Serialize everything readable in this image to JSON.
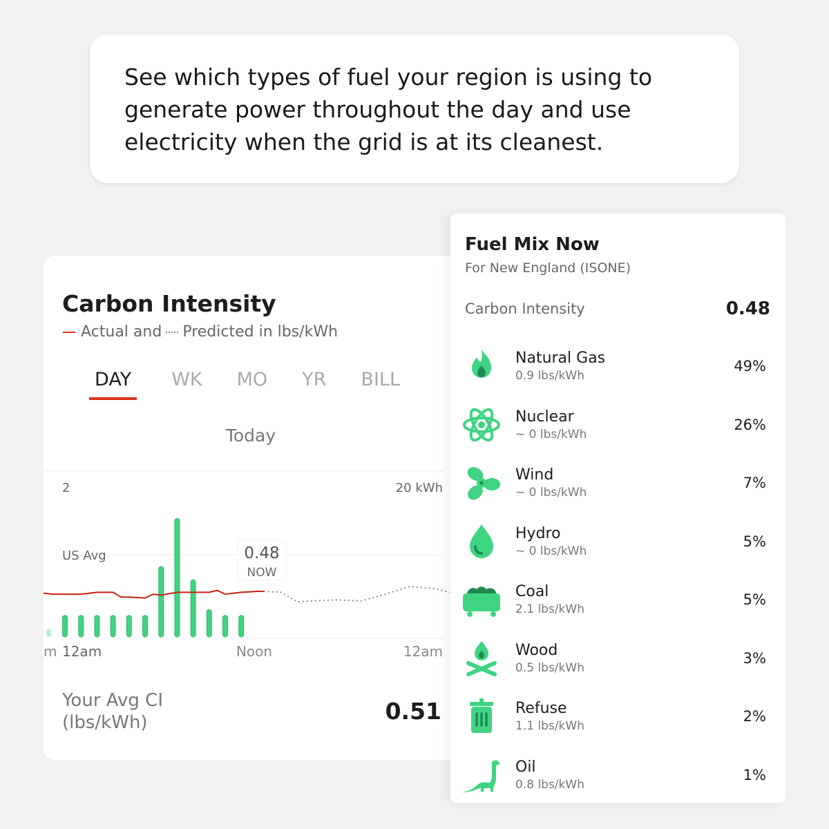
{
  "intro": "See which types of fuel your region is using to generate power throughout the day and use electricity when the grid is at its cleanest.",
  "carbon_card": {
    "title": "Carbon Intensity",
    "legend_actual": "Actual and",
    "legend_predicted": "Predicted in lbs/kWh",
    "tabs": [
      "DAY",
      "WK",
      "MO",
      "YR",
      "BILL"
    ],
    "active_tab": "DAY",
    "period": "Today",
    "avg_label_1": "Your Avg CI",
    "avg_label_2": "(lbs/kWh)",
    "avg_value": "0.51"
  },
  "chart_data": {
    "type": "bar+line",
    "left_axis_top_label": "2",
    "right_axis_top_label": "20 kWh",
    "us_avg_label": "US Avg",
    "us_avg_value": 0.87,
    "x_tick_labels": [
      "12am",
      "Noon",
      "12am"
    ],
    "x_edge_label": "m",
    "now_value": "0.48",
    "now_label": "NOW",
    "colors": {
      "bars": "#3fd482",
      "actual": "#c8200e",
      "predicted": "#888888"
    },
    "usage_kwh": {
      "hours": [
        0,
        1,
        2,
        3,
        4,
        5,
        6,
        7,
        8,
        9,
        10,
        11
      ],
      "values": [
        2.6,
        2.6,
        2.6,
        2.6,
        2.6,
        2.6,
        8.5,
        14.3,
        6.9,
        3.3,
        2.6,
        2.6
      ]
    },
    "actual_ci": {
      "hours": [
        0,
        1,
        2,
        3,
        3.5,
        4,
        5,
        5.5,
        6,
        7,
        8,
        9,
        9.5,
        10,
        11,
        12,
        12.4
      ],
      "values": [
        0.45,
        0.45,
        0.47,
        0.47,
        0.42,
        0.42,
        0.41,
        0.45,
        0.44,
        0.47,
        0.47,
        0.47,
        0.49,
        0.45,
        0.47,
        0.48,
        0.48
      ]
    },
    "predicted_ci": {
      "hours": [
        12.4,
        13.5,
        14.5,
        15.5,
        17,
        18.5,
        20,
        21.5,
        23,
        24
      ],
      "values": [
        0.48,
        0.47,
        0.37,
        0.38,
        0.39,
        0.38,
        0.45,
        0.53,
        0.51,
        0.47
      ]
    }
  },
  "fuel_mix": {
    "title": "Fuel Mix Now",
    "subtitle": "For New England (ISONE)",
    "ci_label": "Carbon Intensity",
    "ci_value": "0.48",
    "fuels": [
      {
        "name": "Natural Gas",
        "rate": "0.9 lbs/kWh",
        "pct": "49%",
        "icon": "flame-icon"
      },
      {
        "name": "Nuclear",
        "rate": "~ 0 lbs/kWh",
        "pct": "26%",
        "icon": "atom-icon"
      },
      {
        "name": "Wind",
        "rate": "~ 0 lbs/kWh",
        "pct": "7%",
        "icon": "fan-icon"
      },
      {
        "name": "Hydro",
        "rate": "~ 0 lbs/kWh",
        "pct": "5%",
        "icon": "water-drop-icon"
      },
      {
        "name": "Coal",
        "rate": "2.1 lbs/kWh",
        "pct": "5%",
        "icon": "coal-cart-icon"
      },
      {
        "name": "Wood",
        "rate": "0.5 lbs/kWh",
        "pct": "3%",
        "icon": "campfire-icon"
      },
      {
        "name": "Refuse",
        "rate": "1.1 lbs/kWh",
        "pct": "2%",
        "icon": "trash-can-icon"
      },
      {
        "name": "Oil",
        "rate": "0.8 lbs/kWh",
        "pct": "1%",
        "icon": "dinosaur-icon"
      }
    ],
    "icon_colors": {
      "light": "#3fd482",
      "dark": "#1f8a50"
    }
  }
}
